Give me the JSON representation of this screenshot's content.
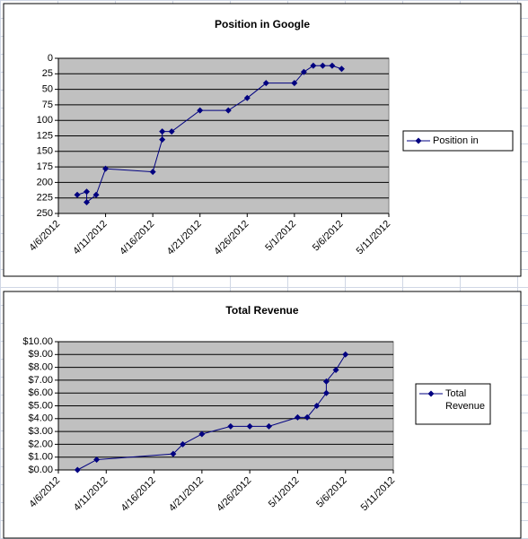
{
  "chart_data": [
    {
      "type": "line",
      "title": "Position in Google",
      "x": [
        "2012-04-08",
        "2012-04-09",
        "2012-04-09",
        "2012-04-10",
        "2012-04-11",
        "2012-04-16",
        "2012-04-17",
        "2012-04-17",
        "2012-04-18",
        "2012-04-21",
        "2012-04-24",
        "2012-04-26",
        "2012-04-28",
        "2012-05-01",
        "2012-05-02",
        "2012-05-03",
        "2012-05-04",
        "2012-05-05",
        "2012-05-06"
      ],
      "series": [
        {
          "name": "Position in Google",
          "color": "#000080",
          "values": [
            220,
            215,
            232,
            220,
            178,
            183,
            131,
            118,
            118,
            84,
            84,
            64,
            40,
            40,
            22,
            12,
            12,
            12,
            17
          ]
        }
      ],
      "xlim": [
        "2012-04-06",
        "2012-05-11"
      ],
      "xticks": [
        {
          "value": "2012-04-06",
          "label": "4/6/2012"
        },
        {
          "value": "2012-04-11",
          "label": "4/11/2012"
        },
        {
          "value": "2012-04-16",
          "label": "4/16/2012"
        },
        {
          "value": "2012-04-21",
          "label": "4/21/2012"
        },
        {
          "value": "2012-04-26",
          "label": "4/26/2012"
        },
        {
          "value": "2012-05-01",
          "label": "5/1/2012"
        },
        {
          "value": "2012-05-06",
          "label": "5/6/2012"
        },
        {
          "value": "2012-05-11",
          "label": "5/11/2012"
        }
      ],
      "ylim": [
        0,
        250
      ],
      "y_reversed": true,
      "yticks": [
        0,
        25,
        50,
        75,
        100,
        125,
        150,
        175,
        200,
        225,
        250
      ],
      "grid": true,
      "legend": "right"
    },
    {
      "type": "line",
      "title": "Total Revenue",
      "x": [
        "2012-04-08",
        "2012-04-10",
        "2012-04-18",
        "2012-04-19",
        "2012-04-21",
        "2012-04-24",
        "2012-04-26",
        "2012-04-28",
        "2012-05-01",
        "2012-05-02",
        "2012-05-03",
        "2012-05-04",
        "2012-05-04",
        "2012-05-05",
        "2012-05-06"
      ],
      "series": [
        {
          "name": "Total Revenue",
          "color": "#000080",
          "values": [
            0,
            0.8,
            1.25,
            2.0,
            2.8,
            3.4,
            3.4,
            3.4,
            4.1,
            4.1,
            5.0,
            6.0,
            6.9,
            7.8,
            9.0
          ]
        }
      ],
      "xlim": [
        "2012-04-06",
        "2012-05-11"
      ],
      "xticks": [
        {
          "value": "2012-04-06",
          "label": "4/6/2012"
        },
        {
          "value": "2012-04-11",
          "label": "4/11/2012"
        },
        {
          "value": "2012-04-16",
          "label": "4/16/2012"
        },
        {
          "value": "2012-04-21",
          "label": "4/21/2012"
        },
        {
          "value": "2012-04-26",
          "label": "4/26/2012"
        },
        {
          "value": "2012-05-01",
          "label": "5/1/2012"
        },
        {
          "value": "2012-05-06",
          "label": "5/6/2012"
        },
        {
          "value": "2012-05-11",
          "label": "5/11/2012"
        }
      ],
      "ylim": [
        0,
        10
      ],
      "y_reversed": false,
      "yticks": [
        {
          "value": 0,
          "label": "$0.00"
        },
        {
          "value": 1,
          "label": "$1.00"
        },
        {
          "value": 2,
          "label": "$2.00"
        },
        {
          "value": 3,
          "label": "$3.00"
        },
        {
          "value": 4,
          "label": "$4.00"
        },
        {
          "value": 5,
          "label": "$5.00"
        },
        {
          "value": 6,
          "label": "$6.00"
        },
        {
          "value": 7,
          "label": "$7.00"
        },
        {
          "value": 8,
          "label": "$8.00"
        },
        {
          "value": 9,
          "label": "$9.00"
        },
        {
          "value": 10,
          "label": "$10.00"
        }
      ],
      "grid": true,
      "legend": "right"
    }
  ]
}
